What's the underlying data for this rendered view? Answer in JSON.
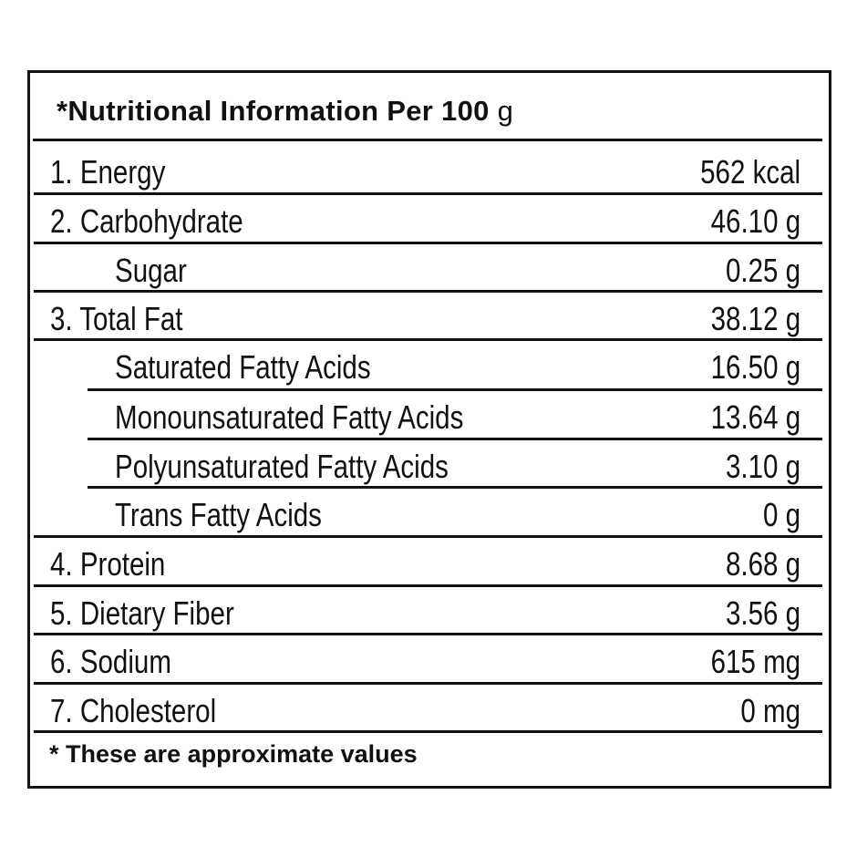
{
  "title": "*Nutritional Information Per 100",
  "title_unit": "g",
  "rows": [
    {
      "label": "1. Energy",
      "value": "562 kcal",
      "indent": false
    },
    {
      "label": "2. Carbohydrate",
      "value": "46.10 g",
      "indent": false
    },
    {
      "label": "Sugar",
      "value": "0.25 g",
      "indent": true
    },
    {
      "label": "3. Total Fat",
      "value": "38.12 g",
      "indent": false
    },
    {
      "label": "Saturated Fatty Acids",
      "value": "16.50 g",
      "indent": true
    },
    {
      "label": "Monounsaturated Fatty Acids",
      "value": "13.64 g",
      "indent": true
    },
    {
      "label": "Polyunsaturated Fatty Acids",
      "value": "3.10 g",
      "indent": true
    },
    {
      "label": "Trans Fatty Acids",
      "value": "0 g",
      "indent": true
    },
    {
      "label": "4. Protein",
      "value": "8.68 g",
      "indent": false
    },
    {
      "label": "5. Dietary Fiber",
      "value": "3.56 g",
      "indent": false
    },
    {
      "label": "6. Sodium",
      "value": "615 mg",
      "indent": false
    },
    {
      "label": "7. Cholesterol",
      "value": "0 mg",
      "indent": false
    }
  ],
  "footnote": "* These are approximate values"
}
